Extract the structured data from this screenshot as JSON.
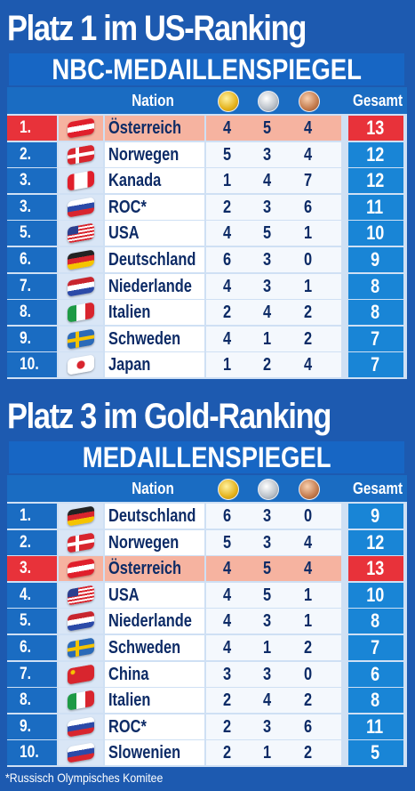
{
  "colors": {
    "background": "#1d5ab0",
    "highlight": "#e8323a",
    "highlight_light": "#f6b3a0",
    "rank_bg": "#1a6cc2",
    "total_bg": "#1985d6"
  },
  "header": {
    "nation": "Nation",
    "gesamt": "Gesamt",
    "gold_icon": "gold-medal-icon",
    "silver_icon": "silver-medal-icon",
    "bronze_icon": "bronze-medal-icon"
  },
  "tables": [
    {
      "title": "Platz 1 im US-Ranking",
      "banner": "NBC-MEDAILLENSPIEGEL",
      "rows": [
        {
          "rank": "1.",
          "flag": "austria-flag-icon",
          "name": "Österreich",
          "gold": "4",
          "silver": "5",
          "bronze": "4",
          "total": "13",
          "highlight": true
        },
        {
          "rank": "2.",
          "flag": "norway-flag-icon",
          "name": "Norwegen",
          "gold": "5",
          "silver": "3",
          "bronze": "4",
          "total": "12",
          "highlight": false
        },
        {
          "rank": "3.",
          "flag": "canada-flag-icon",
          "name": "Kanada",
          "gold": "1",
          "silver": "4",
          "bronze": "7",
          "total": "12",
          "highlight": false
        },
        {
          "rank": "3.",
          "flag": "russia-flag-icon",
          "name": "ROC*",
          "gold": "2",
          "silver": "3",
          "bronze": "6",
          "total": "11",
          "highlight": false
        },
        {
          "rank": "5.",
          "flag": "usa-flag-icon",
          "name": "USA",
          "gold": "4",
          "silver": "5",
          "bronze": "1",
          "total": "10",
          "highlight": false
        },
        {
          "rank": "6.",
          "flag": "germany-flag-icon",
          "name": "Deutschland",
          "gold": "6",
          "silver": "3",
          "bronze": "0",
          "total": "9",
          "highlight": false
        },
        {
          "rank": "7.",
          "flag": "netherlands-flag-icon",
          "name": "Niederlande",
          "gold": "4",
          "silver": "3",
          "bronze": "1",
          "total": "8",
          "highlight": false
        },
        {
          "rank": "8.",
          "flag": "italy-flag-icon",
          "name": "Italien",
          "gold": "2",
          "silver": "4",
          "bronze": "2",
          "total": "8",
          "highlight": false
        },
        {
          "rank": "9.",
          "flag": "sweden-flag-icon",
          "name": "Schweden",
          "gold": "4",
          "silver": "1",
          "bronze": "2",
          "total": "7",
          "highlight": false
        },
        {
          "rank": "10.",
          "flag": "japan-flag-icon",
          "name": "Japan",
          "gold": "1",
          "silver": "2",
          "bronze": "4",
          "total": "7",
          "highlight": false
        }
      ]
    },
    {
      "title": "Platz 3 im Gold-Ranking",
      "banner": "MEDAILLENSPIEGEL",
      "rows": [
        {
          "rank": "1.",
          "flag": "germany-flag-icon",
          "name": "Deutschland",
          "gold": "6",
          "silver": "3",
          "bronze": "0",
          "total": "9",
          "highlight": false
        },
        {
          "rank": "2.",
          "flag": "norway-flag-icon",
          "name": "Norwegen",
          "gold": "5",
          "silver": "3",
          "bronze": "4",
          "total": "12",
          "highlight": false
        },
        {
          "rank": "3.",
          "flag": "austria-flag-icon",
          "name": "Österreich",
          "gold": "4",
          "silver": "5",
          "bronze": "4",
          "total": "13",
          "highlight": true
        },
        {
          "rank": "4.",
          "flag": "usa-flag-icon",
          "name": "USA",
          "gold": "4",
          "silver": "5",
          "bronze": "1",
          "total": "10",
          "highlight": false
        },
        {
          "rank": "5.",
          "flag": "netherlands-flag-icon",
          "name": "Niederlande",
          "gold": "4",
          "silver": "3",
          "bronze": "1",
          "total": "8",
          "highlight": false
        },
        {
          "rank": "6.",
          "flag": "sweden-flag-icon",
          "name": "Schweden",
          "gold": "4",
          "silver": "1",
          "bronze": "2",
          "total": "7",
          "highlight": false
        },
        {
          "rank": "7.",
          "flag": "china-flag-icon",
          "name": "China",
          "gold": "3",
          "silver": "3",
          "bronze": "0",
          "total": "6",
          "highlight": false
        },
        {
          "rank": "8.",
          "flag": "italy-flag-icon",
          "name": "Italien",
          "gold": "2",
          "silver": "4",
          "bronze": "2",
          "total": "8",
          "highlight": false
        },
        {
          "rank": "9.",
          "flag": "russia-flag-icon",
          "name": "ROC*",
          "gold": "2",
          "silver": "3",
          "bronze": "6",
          "total": "11",
          "highlight": false
        },
        {
          "rank": "10.",
          "flag": "slovenia-flag-icon",
          "name": "Slowenien",
          "gold": "2",
          "silver": "1",
          "bronze": "2",
          "total": "5",
          "highlight": false
        }
      ]
    }
  ],
  "footnote": "*Russisch Olympisches Komitee"
}
